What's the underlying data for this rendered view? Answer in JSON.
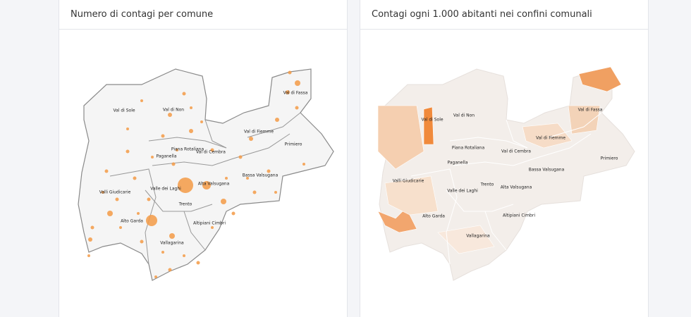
{
  "panels": [
    {
      "title": "Numero di contagi per comune",
      "areas": [
        "Val di Sole",
        "Val di Non",
        "Val di Fassa",
        "Val di Fiemme",
        "Primiero",
        "Piana Rotaliana",
        "Val di Cembra",
        "Paganella",
        "Bassa Valsugana",
        "Valli Giudicarie",
        "Valle dei Laghi",
        "Alta Valsugana",
        "Trento",
        "Alto Garda",
        "Altipiani Cimbri",
        "Vallagarina"
      ]
    },
    {
      "title": "Contagi ogni 1.000 abitanti nei confini comunali",
      "areas": [
        "Val di Sole",
        "Val di Non",
        "Val di Fassa",
        "Val di Fiemme",
        "Primiero",
        "Piana Rotaliana",
        "Val di Cembra",
        "Paganella",
        "Bassa Valsugana",
        "Valli Giudicarie",
        "Valle dei Laghi",
        "Alta Valsugana",
        "Trento",
        "Alto Garda",
        "Altipiani Cimbri",
        "Vallagarina"
      ]
    }
  ]
}
